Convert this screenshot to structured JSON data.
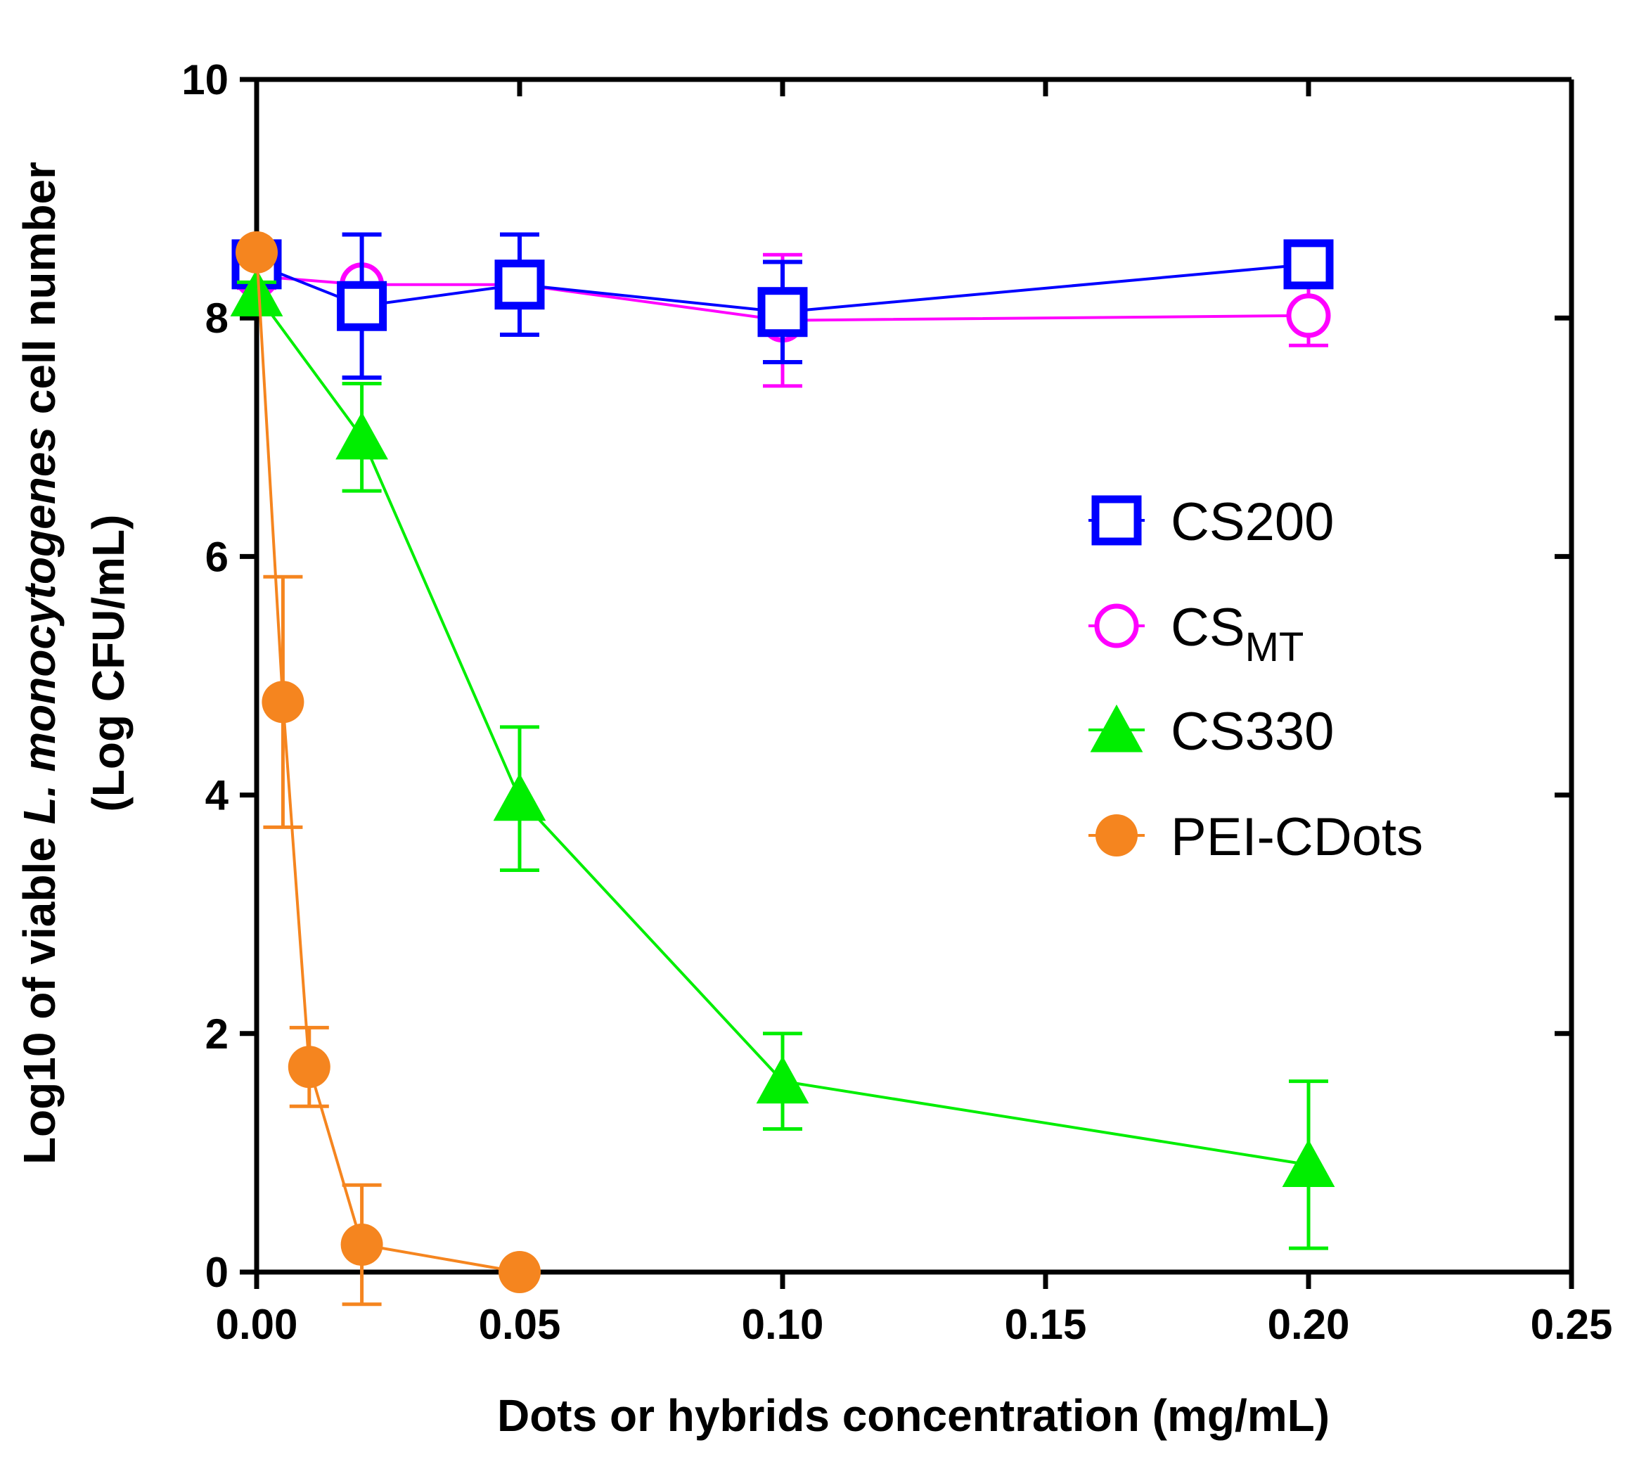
{
  "chart_data": {
    "type": "line",
    "title": "",
    "xlabel": "Dots or hybrids concentration (mg/mL)",
    "ylabel": {
      "prefix": "Log10 of viable ",
      "italic": "L. monocytogenes",
      "suffix": " cell number",
      "line2": "(Log CFU/mL)"
    },
    "xlim": [
      0,
      0.25
    ],
    "ylim": [
      0,
      10
    ],
    "x_ticks": [
      "0.00",
      "0.05",
      "0.10",
      "0.15",
      "0.20",
      "0.25"
    ],
    "y_ticks": [
      "0",
      "2",
      "4",
      "6",
      "8",
      "10"
    ],
    "legend_position": "right",
    "series": [
      {
        "name": "CS200",
        "legend_label": "CS200",
        "legend_sub": "",
        "color": "#0000ff",
        "marker": "square",
        "x": [
          0,
          0.02,
          0.05,
          0.1,
          0.2
        ],
        "y": [
          8.45,
          8.1,
          8.28,
          8.05,
          8.45
        ],
        "err": [
          0.1,
          0.6,
          0.42,
          0.42,
          0.0
        ]
      },
      {
        "name": "CSMT",
        "legend_label": "CS",
        "legend_sub": "MT",
        "color": "#ff00ff",
        "marker": "circle-open",
        "x": [
          0,
          0.02,
          0.05,
          0.1,
          0.2
        ],
        "y": [
          8.35,
          8.28,
          8.28,
          7.98,
          8.02
        ],
        "err": [
          0.1,
          0.0,
          0.0,
          0.55,
          0.25
        ]
      },
      {
        "name": "CS330",
        "legend_label": "CS330",
        "legend_sub": "",
        "color": "#00ee00",
        "marker": "triangle",
        "x": [
          0,
          0.02,
          0.05,
          0.1,
          0.2
        ],
        "y": [
          8.2,
          7.0,
          3.97,
          1.6,
          0.9
        ],
        "err": [
          0.1,
          0.45,
          0.6,
          0.4,
          0.7
        ]
      },
      {
        "name": "PEI-CDots",
        "legend_label": "PEI-CDots",
        "legend_sub": "",
        "color": "#f5851f",
        "marker": "circle-filled",
        "x": [
          0,
          0.005,
          0.01,
          0.02,
          0.05
        ],
        "y": [
          8.55,
          4.78,
          1.72,
          0.23,
          0.0
        ],
        "err": [
          0.0,
          1.05,
          0.33,
          0.5,
          0.0
        ]
      }
    ]
  }
}
